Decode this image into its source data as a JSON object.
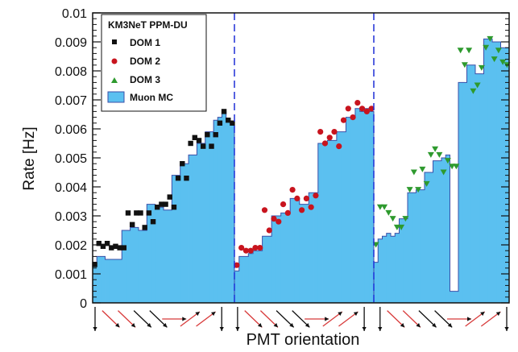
{
  "chart_data": {
    "type": "bar",
    "title": "",
    "xlabel": "PMT orientation",
    "ylabel": "Rate [Hz]",
    "ylim": [
      0,
      0.01
    ],
    "yticks": [
      "0",
      "0.001",
      "0.002",
      "0.003",
      "0.004",
      "0.005",
      "0.006",
      "0.007",
      "0.008",
      "0.009",
      "0.01"
    ],
    "grid": false,
    "legend": {
      "placement": "top-left",
      "title": "KM3NeT PPM-DU",
      "entries": [
        "DOM 1",
        "DOM 2",
        "DOM 3",
        "Muon MC"
      ]
    },
    "colors": {
      "mc_fill": "#5bc0f0",
      "mc_outline": "#3a4fa8",
      "dom1": "#111111",
      "dom2": "#c8141e",
      "dom3": "#2e9a2e",
      "divider": "#1f2fd6",
      "arrow_red": "#d83a3a",
      "arrow_black": "#111111"
    },
    "panels": [
      {
        "dom": "DOM 1",
        "marker": "square",
        "mc": [
          0.0014,
          0.0016,
          0.0016,
          0.0015,
          0.0015,
          0.0015,
          0.0015,
          0.0025,
          0.0025,
          0.0026,
          0.0026,
          0.0025,
          0.0025,
          0.0034,
          0.0034,
          0.0033,
          0.0033,
          0.0032,
          0.0032,
          0.0044,
          0.0044,
          0.0048,
          0.0048,
          0.0051,
          0.0051,
          0.0055,
          0.0055,
          0.0059,
          0.0059,
          0.0063,
          0.0064,
          0.0066,
          0.0063,
          0.0062
        ],
        "data": [
          0.00132,
          0.00205,
          0.00195,
          0.00205,
          0.0019,
          0.00195,
          0.0019,
          0.0019,
          0.0031,
          0.0027,
          0.0031,
          0.0031,
          0.0026,
          0.0031,
          0.0028,
          0.0033,
          0.0034,
          0.0034,
          0.00365,
          0.0033,
          0.0043,
          0.0048,
          0.0043,
          0.0055,
          0.0057,
          0.0056,
          0.0054,
          0.0058,
          0.0054,
          0.0058,
          0.0062,
          0.0066,
          0.0063,
          0.0062
        ]
      },
      {
        "dom": "DOM 2",
        "marker": "circle",
        "mc": [
          0.0011,
          0.0016,
          0.0016,
          0.0017,
          0.0018,
          0.0018,
          0.0023,
          0.0023,
          0.003,
          0.003,
          0.0031,
          0.0031,
          0.0036,
          0.0036,
          0.0034,
          0.0034,
          0.0038,
          0.0038,
          0.0055,
          0.0055,
          0.0056,
          0.0056,
          0.0059,
          0.0059,
          0.0064,
          0.0064,
          0.0067,
          0.0066,
          0.0067,
          0.0066
        ],
        "data": [
          0.0013,
          0.0019,
          0.0018,
          0.0018,
          0.0019,
          0.0019,
          0.0032,
          0.0025,
          0.0029,
          0.0028,
          0.0034,
          0.0031,
          0.0039,
          0.0036,
          0.0032,
          0.0036,
          0.0033,
          0.0037,
          0.0059,
          0.0055,
          0.0057,
          0.0059,
          0.0054,
          0.0063,
          0.0067,
          0.0064,
          0.0069,
          0.0067,
          0.0066,
          0.0067
        ]
      },
      {
        "dom": "DOM 3",
        "marker": "triangle-down",
        "mc": [
          0.0014,
          0.0022,
          0.0023,
          0.0024,
          0.0023,
          0.0024,
          0.0029,
          0.0029,
          0.0038,
          0.0038,
          0.0039,
          0.0039,
          0.0045,
          0.0045,
          0.0049,
          0.0049,
          0.005,
          0.0051,
          0.0004,
          0.0004,
          0.0076,
          0.0076,
          0.0082,
          0.0082,
          0.0079,
          0.0079,
          0.0091,
          0.0091,
          0.009,
          0.009,
          0.0088,
          0.0088
        ],
        "data": [
          0.002,
          0.0033,
          0.0033,
          0.0031,
          0.0029,
          0.0026,
          0.0026,
          0.0029,
          0.0039,
          0.0045,
          0.0039,
          0.0046,
          0.0041,
          0.0051,
          0.0053,
          0.0051,
          0.0045,
          0.0049,
          0.0047,
          0.0047,
          0.0087,
          0.0082,
          0.0087,
          0.0073,
          0.0075,
          0.0081,
          0.0088,
          0.0091,
          0.0084,
          0.0087,
          0.0083,
          0.0082
        ]
      }
    ],
    "orientation_arrows": [
      {
        "dir": "down",
        "color": "black"
      },
      {
        "dir": "down-right",
        "color": "red"
      },
      {
        "dir": "down-right",
        "color": "red"
      },
      {
        "dir": "down-right",
        "color": "black"
      },
      {
        "dir": "down-right",
        "color": "black"
      },
      {
        "dir": "right",
        "color": "red"
      },
      {
        "dir": "up-right",
        "color": "red"
      },
      {
        "dir": "up-right",
        "color": "red"
      },
      {
        "dir": "down",
        "color": "black"
      },
      {
        "dir": "down",
        "color": "black"
      },
      {
        "dir": "down-right",
        "color": "red"
      },
      {
        "dir": "down-right",
        "color": "red"
      },
      {
        "dir": "down-right",
        "color": "black"
      },
      {
        "dir": "down-right",
        "color": "black"
      },
      {
        "dir": "right",
        "color": "red"
      },
      {
        "dir": "up-right",
        "color": "red"
      },
      {
        "dir": "up-right",
        "color": "red"
      },
      {
        "dir": "down",
        "color": "black"
      },
      {
        "dir": "down",
        "color": "black"
      },
      {
        "dir": "down-right",
        "color": "red"
      },
      {
        "dir": "down-right",
        "color": "red"
      },
      {
        "dir": "down-right",
        "color": "black"
      },
      {
        "dir": "down-right",
        "color": "black"
      },
      {
        "dir": "right",
        "color": "red"
      },
      {
        "dir": "up-right",
        "color": "red"
      },
      {
        "dir": "up-right",
        "color": "red"
      },
      {
        "dir": "down",
        "color": "black"
      }
    ]
  }
}
